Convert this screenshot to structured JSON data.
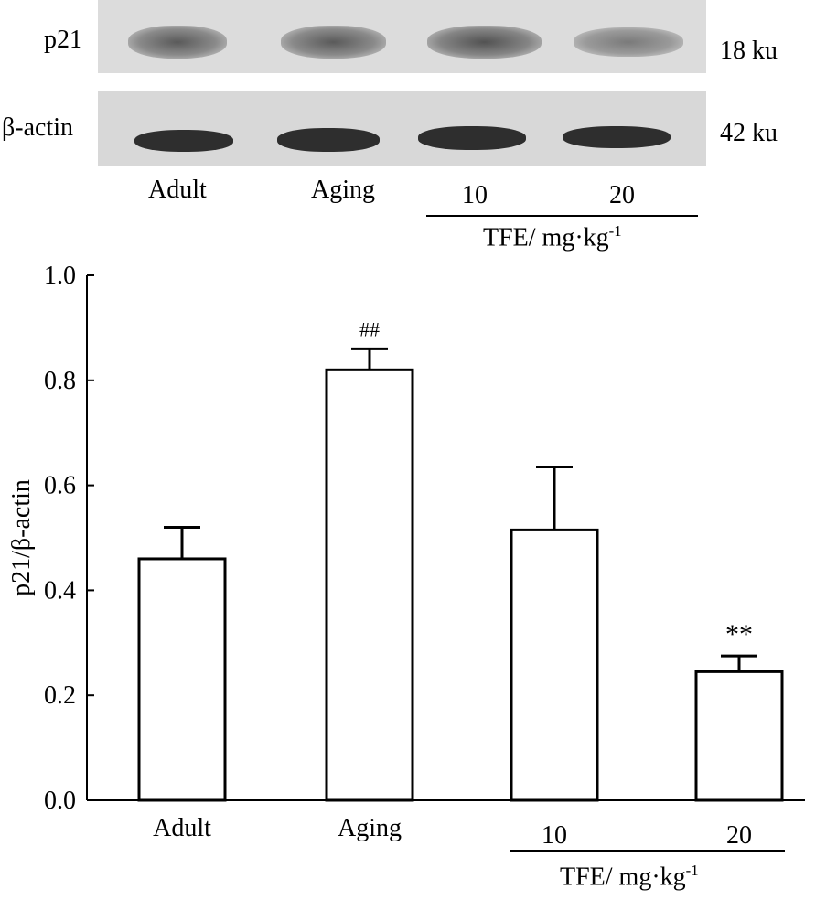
{
  "blot": {
    "rows": [
      {
        "label": "p21",
        "size": "18 ku"
      },
      {
        "label": "β-actin",
        "size": "42 ku"
      }
    ],
    "lanes": [
      "Adult",
      "Aging",
      "10",
      "20"
    ],
    "group_label": "TFE/ mg·kg",
    "group_label_sup": "-1"
  },
  "chart_data": {
    "type": "bar",
    "categories": [
      "Adult",
      "Aging",
      "10",
      "20"
    ],
    "values": [
      0.46,
      0.82,
      0.515,
      0.245
    ],
    "errors": [
      0.06,
      0.04,
      0.12,
      0.03
    ],
    "annotations": [
      "",
      "##",
      "",
      "**"
    ],
    "ylabel": "p21/β-actin",
    "ylim": [
      0,
      1.0
    ],
    "yticks": [
      "0.0",
      "0.2",
      "0.4",
      "0.6",
      "0.8",
      "1.0"
    ],
    "group_label": "TFE/ mg·kg",
    "group_label_sup": "-1",
    "bar_fill": "#ffffff",
    "bar_stroke": "#000000"
  }
}
